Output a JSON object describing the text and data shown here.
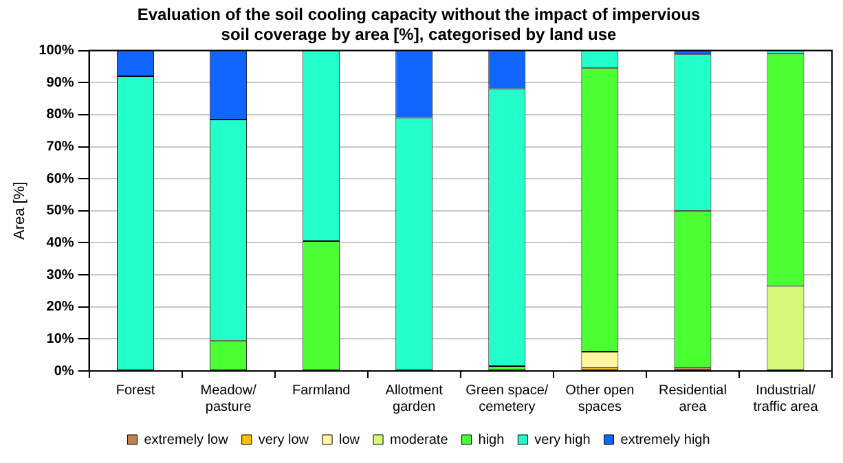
{
  "chart_data": {
    "type": "bar",
    "stacked": true,
    "title": "Evaluation of the soil cooling capacity without the impact of impervious soil coverage by area [%], categorised by land use",
    "ylabel": "Area [%]",
    "categories": [
      "Forest",
      "Meadow/ pasture",
      "Farmland",
      "Allotment garden",
      "Green space/ cemetery",
      "Other open spaces",
      "Residential area",
      "Industrial/ traffic area"
    ],
    "series": [
      {
        "name": "extremely low",
        "color": "#c0804f",
        "values": [
          null,
          null,
          null,
          null,
          null,
          null,
          1,
          null
        ]
      },
      {
        "name": "very low",
        "color": "#ffc000",
        "values": [
          null,
          null,
          null,
          null,
          null,
          1,
          null,
          null
        ]
      },
      {
        "name": "low",
        "color": "#fff5a0",
        "values": [
          null,
          null,
          null,
          null,
          null,
          5,
          null,
          null
        ]
      },
      {
        "name": "moderate",
        "color": "#d8f878",
        "values": [
          null,
          null,
          null,
          null,
          null,
          null,
          null,
          26.5
        ]
      },
      {
        "name": "high",
        "color": "#4cff33",
        "values": [
          null,
          9.5,
          40.5,
          null,
          1.5,
          88.5,
          49,
          72.5
        ]
      },
      {
        "name": "very high",
        "color": "#22ffc8",
        "values": [
          92,
          69,
          59.5,
          79,
          86.5,
          5.5,
          48.8,
          1
        ]
      },
      {
        "name": "extremely high",
        "color": "#1166ff",
        "values": [
          8,
          21.5,
          null,
          21,
          12,
          null,
          1.2,
          null
        ]
      }
    ],
    "ylim": [
      0,
      100
    ],
    "yticks": [
      {
        "value": 0,
        "label": "0%"
      },
      {
        "value": 10,
        "label": "10%"
      },
      {
        "value": 20,
        "label": "20%"
      },
      {
        "value": 30,
        "label": "30%"
      },
      {
        "value": 40,
        "label": "40%"
      },
      {
        "value": 50,
        "label": "50%"
      },
      {
        "value": 60,
        "label": "60%"
      },
      {
        "value": 70,
        "label": "70%"
      },
      {
        "value": 80,
        "label": "80%"
      },
      {
        "value": 90,
        "label": "90%"
      },
      {
        "value": 100,
        "label": "100%"
      }
    ],
    "grid": "y",
    "legend": "bottom"
  }
}
